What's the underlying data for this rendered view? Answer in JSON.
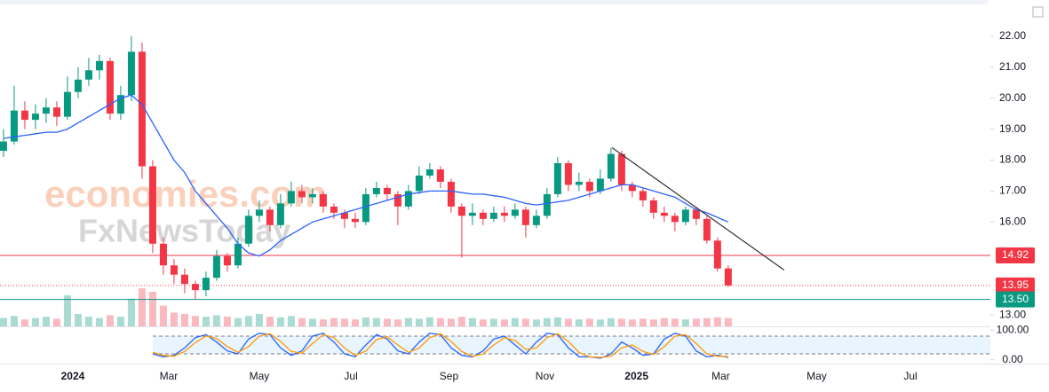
{
  "chart_data": [
    {
      "type": "candlestick",
      "watermark": [
        "economies.com",
        "FxNewsToday"
      ],
      "open": [
        18.3,
        18.6,
        19.6,
        19.3,
        19.5,
        19.7,
        19.4,
        20.2,
        20.6,
        20.9,
        21.2,
        19.5,
        20.1,
        21.5,
        17.8,
        15.3,
        14.6,
        14.3,
        14.0,
        13.8,
        14.2,
        14.9,
        14.6,
        15.3,
        16.2,
        16.4,
        15.9,
        16.6,
        17.0,
        16.8,
        16.9,
        16.5,
        16.3,
        16.1,
        16.0,
        16.9,
        17.1,
        16.9,
        16.5,
        17.0,
        17.5,
        17.7,
        17.3,
        16.5,
        16.2,
        16.3,
        16.1,
        16.3,
        16.2,
        16.4,
        15.9,
        16.2,
        16.9,
        17.9,
        17.2,
        17.3,
        17.0,
        17.4,
        18.2,
        17.2,
        17.0,
        16.7,
        16.3,
        16.2,
        16.0,
        16.4,
        16.1,
        15.4,
        14.5
      ],
      "high": [
        19.0,
        20.4,
        19.9,
        19.8,
        20.0,
        19.9,
        20.7,
        21.0,
        21.3,
        21.4,
        21.3,
        20.4,
        22.0,
        21.8,
        18.0,
        15.5,
        14.8,
        14.5,
        14.1,
        14.4,
        15.1,
        15.0,
        15.5,
        16.4,
        16.7,
        16.5,
        16.9,
        17.3,
        17.2,
        17.1,
        17.0,
        16.6,
        16.4,
        16.3,
        17.1,
        17.3,
        17.2,
        17.0,
        17.2,
        17.8,
        17.9,
        17.8,
        17.4,
        16.6,
        16.6,
        16.4,
        16.5,
        16.5,
        16.6,
        16.5,
        16.4,
        17.1,
        18.1,
        18.0,
        17.6,
        17.4,
        17.7,
        18.4,
        18.3,
        17.3,
        17.1,
        16.8,
        16.5,
        16.3,
        16.5,
        16.5,
        16.2,
        15.5,
        14.6
      ],
      "low": [
        18.1,
        18.5,
        19.0,
        19.0,
        19.2,
        19.1,
        19.3,
        20.0,
        20.4,
        20.6,
        19.3,
        19.3,
        19.9,
        17.4,
        15.0,
        14.3,
        14.0,
        13.7,
        13.5,
        13.6,
        14.1,
        14.4,
        14.5,
        15.2,
        16.0,
        15.7,
        15.8,
        16.5,
        16.6,
        16.6,
        16.3,
        16.1,
        15.8,
        15.8,
        15.9,
        16.8,
        16.7,
        15.9,
        16.4,
        16.9,
        17.4,
        17.1,
        16.3,
        14.85,
        15.9,
        15.9,
        16.0,
        16.0,
        16.1,
        15.5,
        15.8,
        16.1,
        16.8,
        17.0,
        17.0,
        16.8,
        16.9,
        17.3,
        17.0,
        16.8,
        16.5,
        16.1,
        16.0,
        15.7,
        15.9,
        15.9,
        15.3,
        14.4,
        13.9
      ],
      "close": [
        18.6,
        19.6,
        19.3,
        19.5,
        19.7,
        19.4,
        20.2,
        20.6,
        20.9,
        21.2,
        19.5,
        20.1,
        21.5,
        17.8,
        15.3,
        14.6,
        14.3,
        14.0,
        13.8,
        14.2,
        14.9,
        14.6,
        15.3,
        16.2,
        16.4,
        15.9,
        16.6,
        17.0,
        16.8,
        16.9,
        16.5,
        16.3,
        16.1,
        16.0,
        16.9,
        17.1,
        16.9,
        16.5,
        17.0,
        17.5,
        17.7,
        17.3,
        16.5,
        16.2,
        16.3,
        16.1,
        16.3,
        16.2,
        16.4,
        15.9,
        16.2,
        16.9,
        17.9,
        17.2,
        17.3,
        17.0,
        17.4,
        18.2,
        17.2,
        17.0,
        16.7,
        16.3,
        16.2,
        16.0,
        16.4,
        16.1,
        15.4,
        14.5,
        13.95
      ],
      "up_color": "#089981",
      "down_color": "#f23645",
      "volume": {
        "ylim": [
          0,
          100
        ],
        "values": [
          12,
          15,
          10,
          12,
          14,
          11,
          45,
          18,
          14,
          12,
          16,
          14,
          40,
          55,
          50,
          30,
          20,
          18,
          15,
          14,
          16,
          14,
          12,
          15,
          18,
          14,
          13,
          15,
          12,
          11,
          10,
          12,
          11,
          10,
          13,
          12,
          11,
          10,
          12,
          11,
          13,
          12,
          11,
          14,
          12,
          10,
          11,
          10,
          12,
          11,
          10,
          12,
          13,
          11,
          10,
          11,
          10,
          12,
          11,
          10,
          11,
          10,
          12,
          11,
          10,
          11,
          12,
          13,
          12
        ]
      },
      "ma": {
        "color": "#2962ff",
        "values": [
          18.7,
          18.75,
          18.8,
          18.85,
          18.9,
          18.9,
          19.0,
          19.2,
          19.4,
          19.6,
          19.8,
          20.0,
          20.1,
          19.8,
          19.2,
          18.6,
          18.0,
          17.6,
          17.0,
          16.6,
          16.2,
          15.8,
          15.3,
          15.0,
          14.9,
          15.1,
          15.4,
          15.6,
          15.8,
          16.0,
          16.1,
          16.2,
          16.3,
          16.4,
          16.5,
          16.6,
          16.7,
          16.8,
          16.9,
          16.95,
          17.0,
          17.0,
          17.0,
          16.95,
          16.9,
          16.9,
          16.85,
          16.8,
          16.7,
          16.6,
          16.55,
          16.6,
          16.65,
          16.7,
          16.8,
          16.9,
          17.0,
          17.1,
          17.2,
          17.2,
          17.1,
          17.0,
          16.9,
          16.8,
          16.6,
          16.4,
          16.3,
          16.15,
          16.0
        ]
      },
      "trendline": {
        "x": [
          57.1,
          73.25
        ],
        "y": [
          18.4,
          14.45
        ],
        "color": "#333333"
      },
      "levels": [
        {
          "value": 14.92,
          "label": "14.92",
          "color": "#f23645",
          "style": "solid"
        },
        {
          "value": 13.95,
          "label": "13.95",
          "color": "#f23645",
          "style": "dotted"
        },
        {
          "value": 13.5,
          "label": "13.50",
          "color": "#089981",
          "style": "solid"
        }
      ],
      "xlim": [
        -0.33,
        92.6
      ],
      "xticks": [
        {
          "value": 6.5,
          "label": "2024"
        },
        {
          "value": 15.5,
          "label": "Mar"
        },
        {
          "value": 24,
          "label": "May"
        },
        {
          "value": 32.6,
          "label": "Jul"
        },
        {
          "value": 41.8,
          "label": "Sep"
        },
        {
          "value": 50.8,
          "label": "Nov"
        },
        {
          "value": 59.4,
          "label": "2025"
        },
        {
          "value": 67.3,
          "label": "Mar"
        },
        {
          "value": 76.3,
          "label": "May"
        },
        {
          "value": 85.1,
          "label": "Jul"
        }
      ],
      "ylim": [
        12.63,
        23.17
      ],
      "yticks": [
        {
          "value": 13,
          "label": "13.00"
        },
        {
          "value": 16,
          "label": "16.00"
        },
        {
          "value": 17,
          "label": "17.00"
        },
        {
          "value": 18,
          "label": "18.00"
        },
        {
          "value": 19,
          "label": "19.00"
        },
        {
          "value": 20,
          "label": "20.00"
        },
        {
          "value": 21,
          "label": "21.00"
        },
        {
          "value": 22,
          "label": "22.00"
        }
      ]
    },
    {
      "type": "line",
      "series": [
        {
          "color": "#2962ff",
          "values": [
            null,
            null,
            null,
            null,
            null,
            null,
            null,
            null,
            null,
            null,
            null,
            null,
            null,
            null,
            20,
            10,
            15,
            40,
            75,
            85,
            60,
            30,
            20,
            70,
            90,
            85,
            40,
            15,
            30,
            80,
            90,
            60,
            20,
            10,
            50,
            85,
            70,
            30,
            20,
            60,
            90,
            85,
            40,
            15,
            10,
            30,
            70,
            80,
            50,
            20,
            60,
            90,
            85,
            40,
            10,
            10,
            5,
            20,
            60,
            40,
            15,
            20,
            70,
            90,
            80,
            30,
            10,
            15,
            8
          ]
        },
        {
          "color": "#ff9800",
          "values": [
            null,
            null,
            null,
            null,
            null,
            null,
            null,
            null,
            null,
            null,
            null,
            null,
            null,
            null,
            25,
            15,
            12,
            28,
            58,
            80,
            72,
            45,
            25,
            45,
            80,
            88,
            62,
            28,
            22,
            55,
            85,
            75,
            40,
            15,
            30,
            68,
            78,
            50,
            25,
            40,
            75,
            88,
            62,
            28,
            12,
            20,
            50,
            75,
            65,
            35,
            40,
            75,
            88,
            62,
            25,
            10,
            8,
            12,
            40,
            50,
            28,
            18,
            45,
            80,
            85,
            55,
            20,
            12,
            11
          ]
        }
      ],
      "band": [
        20,
        80
      ],
      "ylim": [
        -10,
        110
      ],
      "yticks": [
        {
          "value": 100,
          "label": "100.00"
        },
        {
          "value": 0,
          "label": "0.00"
        }
      ]
    }
  ]
}
